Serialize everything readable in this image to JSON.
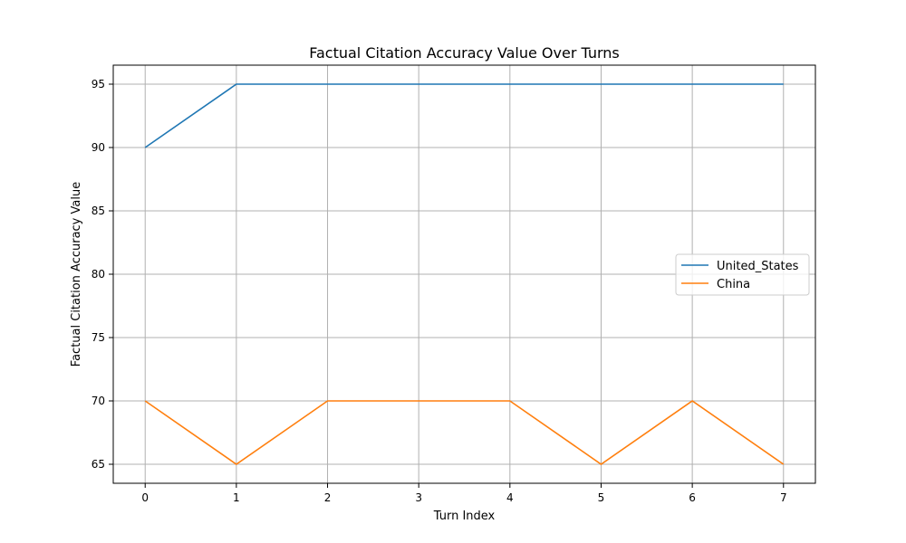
{
  "chart_data": {
    "type": "line",
    "title": "Factual Citation Accuracy Value Over Turns",
    "xlabel": "Turn Index",
    "ylabel": "Factual Citation Accuracy Value",
    "x": [
      0,
      1,
      2,
      3,
      4,
      5,
      6,
      7
    ],
    "xlim": [
      -0.35,
      7.35
    ],
    "ylim": [
      63.5,
      96.5
    ],
    "xticks": [
      0,
      1,
      2,
      3,
      4,
      5,
      6,
      7
    ],
    "yticks": [
      65,
      70,
      75,
      80,
      85,
      90,
      95
    ],
    "grid": true,
    "legend_position": "center-right",
    "series": [
      {
        "name": "United_States",
        "color": "#1f77b4",
        "values": [
          90,
          95,
          95,
          95,
          95,
          95,
          95,
          95
        ]
      },
      {
        "name": "China",
        "color": "#ff7f0e",
        "values": [
          70,
          65,
          70,
          70,
          70,
          65,
          70,
          65
        ]
      }
    ]
  }
}
